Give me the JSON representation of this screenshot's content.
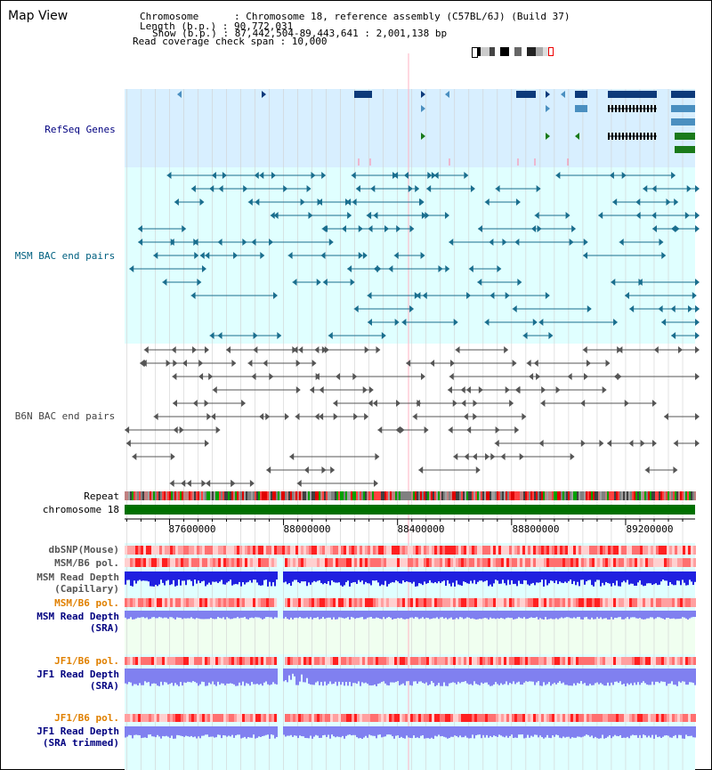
{
  "view": {
    "title": "Map View",
    "info_lines": [
      "Chromosome      : Chromosome 18, reference assembly (C57BL/6J) (Build 37)",
      "Length (b.p.) : 90,772,031",
      "Show (b.p.) : 87,442,504-89,443,641 : 2,001,138 bp",
      "Read coverage check span : 10,000"
    ]
  },
  "tracks": {
    "refseq": "RefSeq Genes",
    "msm_bac": "MSM BAC end pairs",
    "b6n_bac": "B6N BAC end pairs",
    "repeat": "Repeat",
    "chromosome": "chromosome 18"
  },
  "axis": {
    "tick_labels": [
      "87600000",
      "88000000",
      "88400000",
      "88800000",
      "89200000"
    ],
    "tick_values": [
      87600000,
      88000000,
      88400000,
      88800000,
      89200000
    ],
    "range": [
      87442504,
      89443641
    ]
  },
  "lower_tracks": {
    "dbsnp": "dbSNP(Mouse)",
    "msm_b6_pol_1": "MSM/B6 pol.",
    "msm_read_depth_cap_1": "MSM Read Depth",
    "msm_read_depth_cap_2": "(Capillary)",
    "msm_b6_pol_2": "MSM/B6 pol.",
    "msm_read_depth_sra_1": "MSM Read Depth",
    "msm_read_depth_sra_2": "(SRA)",
    "jf1_b6_pol_1": "JF1/B6 pol.",
    "jf1_read_depth_sra_1": "JF1 Read Depth",
    "jf1_read_depth_sra_2": "(SRA)",
    "jf1_b6_pol_2": "JF1/B6 pol.",
    "jf1_read_depth_trim_1": "JF1 Read Depth",
    "jf1_read_depth_trim_2": "(SRA trimmed)"
  },
  "colors": {
    "refseq_bg": "#d8efff",
    "msm_bg": "#e0ffff",
    "gene_dark": "#0d3a7a",
    "gene_light": "#4a8fc0",
    "gene_green": "#1a7a1a",
    "msm_line": "#1a6e8e",
    "b6n_line": "#555555",
    "label_navy": "#000080",
    "label_teal": "#006080",
    "label_orange": "#e08000",
    "depth_dark": "#2020e0",
    "depth_light": "#8080f0",
    "pol_red": "#ff3030",
    "chromosome_green": "#007000"
  }
}
